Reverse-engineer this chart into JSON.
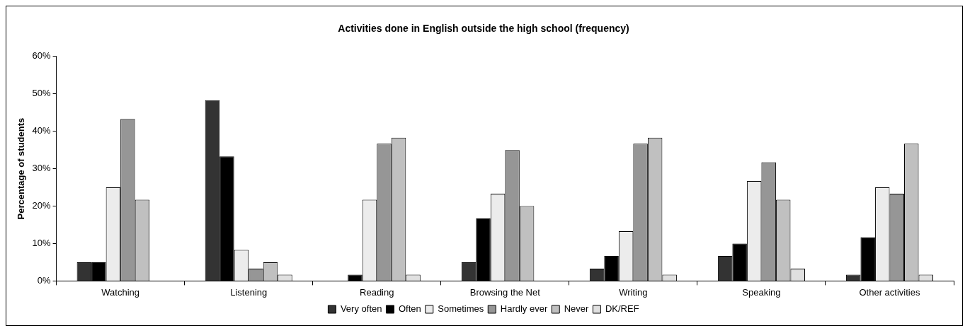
{
  "chart_data": {
    "type": "bar",
    "title": "Activities done in English outside the high school (frequency)",
    "ylabel": "Percentage of students",
    "categories": [
      "Watching",
      "Listening",
      "Reading",
      "Browsing the Net",
      "Writing",
      "Speaking",
      "Other activities"
    ],
    "series": [
      {
        "name": "Very often",
        "color": "#333333",
        "values": [
          5,
          48.3,
          0,
          5,
          3.3,
          6.7,
          1.7
        ]
      },
      {
        "name": "Often",
        "color": "#000000",
        "values": [
          5,
          33.3,
          1.7,
          16.7,
          6.7,
          10,
          11.7
        ]
      },
      {
        "name": "Sometimes",
        "color": "#ececec",
        "values": [
          25,
          8.3,
          21.7,
          23.3,
          13.3,
          26.7,
          25
        ]
      },
      {
        "name": "Hardly ever",
        "color": "#969696",
        "values": [
          43.3,
          3.3,
          36.7,
          35,
          36.7,
          31.7,
          23.3
        ]
      },
      {
        "name": "Never",
        "color": "#c0c0c0",
        "values": [
          21.7,
          5,
          38.3,
          20,
          38.3,
          21.7,
          36.7
        ]
      },
      {
        "name": "DK/REF",
        "color": "#e0e0e0",
        "values": [
          0,
          1.7,
          1.7,
          0,
          1.7,
          3.3,
          1.7
        ]
      }
    ],
    "ylim": [
      0,
      60
    ],
    "yticks": [
      {
        "value": 0,
        "label": "0%"
      },
      {
        "value": 10,
        "label": "10%"
      },
      {
        "value": 20,
        "label": "20%"
      },
      {
        "value": 30,
        "label": "30%"
      },
      {
        "value": 40,
        "label": "40%"
      },
      {
        "value": 50,
        "label": "50%"
      },
      {
        "value": 60,
        "label": "60%"
      }
    ],
    "grid": false,
    "legend": "bottom"
  }
}
